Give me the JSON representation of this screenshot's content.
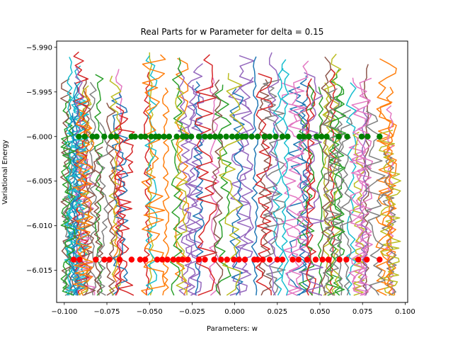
{
  "chart_data": {
    "type": "line",
    "title": "Real Parts for w Parameter for delta = 0.15",
    "xlabel": "Parameters: w",
    "ylabel": "Variational Energy",
    "xlim": [
      -0.1045,
      0.1015
    ],
    "ylim": [
      -6.0186,
      -5.9893
    ],
    "x_ticks": [
      -0.1,
      -0.075,
      -0.05,
      -0.025,
      0.0,
      0.025,
      0.05,
      0.075,
      0.1
    ],
    "x_tick_labels": [
      "−0.100",
      "−0.075",
      "−0.050",
      "−0.025",
      "0.000",
      "0.025",
      "0.050",
      "0.075",
      "0.100"
    ],
    "y_ticks": [
      -5.99,
      -5.995,
      -6.0,
      -6.005,
      -6.01,
      -6.015
    ],
    "y_tick_labels": [
      "−5.990",
      "−5.995",
      "−6.000",
      "−6.005",
      "−6.010",
      "−6.015"
    ],
    "grid": false,
    "legend": "none",
    "line_colors": [
      "#1f77b4",
      "#ff7f0e",
      "#2ca02c",
      "#d62728",
      "#9467bd",
      "#8c564b",
      "#e377c2",
      "#7f7f7f",
      "#bcbd22",
      "#17becf"
    ],
    "line_band": {
      "ymin": -6.0178,
      "ymax": -5.9905,
      "x_min": -0.098,
      "x_max": 0.091
    },
    "series": [
      {
        "marker": "circle",
        "color": "#008000",
        "y": -6.0,
        "x": [
          -0.0915,
          -0.088,
          -0.0835,
          -0.081,
          -0.0765,
          -0.0725,
          -0.0695,
          -0.0605,
          -0.0585,
          -0.055,
          -0.0525,
          -0.049,
          -0.0465,
          -0.0445,
          -0.0415,
          -0.0385,
          -0.034,
          -0.0305,
          -0.0285,
          -0.0255,
          -0.021,
          -0.0175,
          -0.0145,
          -0.0115,
          -0.0085,
          -0.005,
          -0.0015,
          0.0015,
          0.0045,
          0.0065,
          0.01,
          0.0135,
          0.0175,
          0.0205,
          0.024,
          0.028,
          0.031,
          0.038,
          0.0405,
          0.0435,
          0.048,
          0.051,
          0.054,
          0.061,
          0.066,
          0.0745,
          0.078,
          0.085
        ]
      },
      {
        "marker": "circle",
        "color": "#ff0000",
        "y": -6.0138,
        "x": [
          -0.0945,
          -0.091,
          -0.0815,
          -0.0765,
          -0.0735,
          -0.0675,
          -0.0605,
          -0.0555,
          -0.0525,
          -0.0455,
          -0.0425,
          -0.0395,
          -0.036,
          -0.033,
          -0.0305,
          -0.0275,
          -0.021,
          -0.0175,
          -0.012,
          -0.008,
          -0.0045,
          -0.0005,
          0.0025,
          0.006,
          0.0115,
          0.0135,
          0.0165,
          0.0205,
          0.025,
          0.028,
          0.034,
          0.0375,
          0.0425,
          0.0475,
          0.0515,
          0.055,
          0.0615,
          0.0655,
          0.0725,
          0.0775,
          0.085
        ]
      }
    ]
  }
}
